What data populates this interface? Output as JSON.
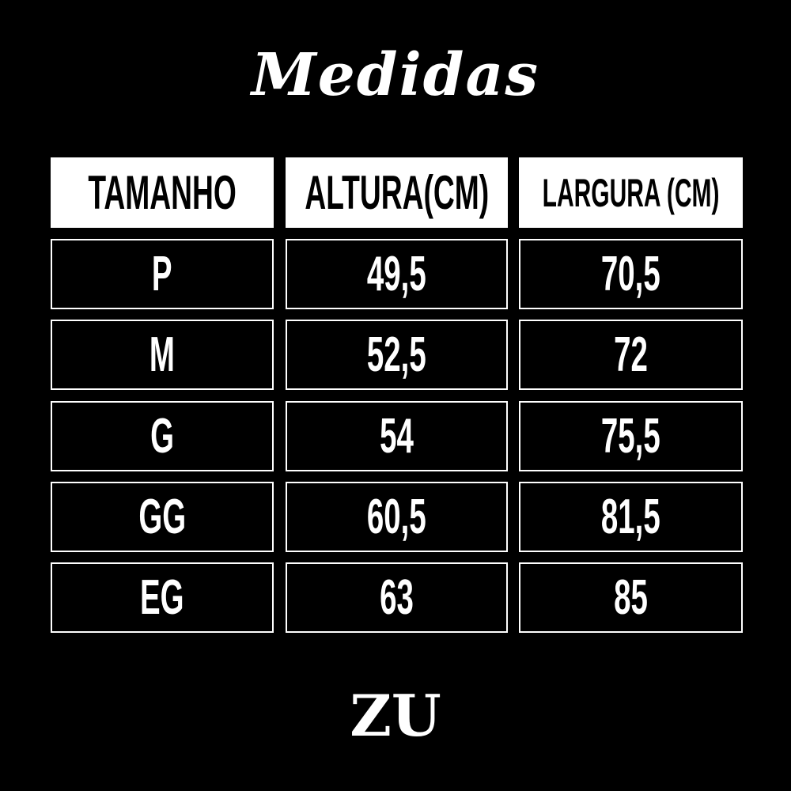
{
  "title": "Medidas",
  "table": {
    "headers": [
      "TAMANHO",
      "ALTURA(CM)",
      "LARGURA (CM)"
    ],
    "rows": [
      [
        "P",
        "49,5",
        "70,5"
      ],
      [
        "M",
        "52,5",
        "72"
      ],
      [
        "G",
        "54",
        "75,5"
      ],
      [
        "GG",
        "60,5",
        "81,5"
      ],
      [
        "EG",
        "63",
        "85"
      ]
    ]
  },
  "logo": "ZU",
  "colors": {
    "background": "#000000",
    "foreground": "#ffffff"
  }
}
